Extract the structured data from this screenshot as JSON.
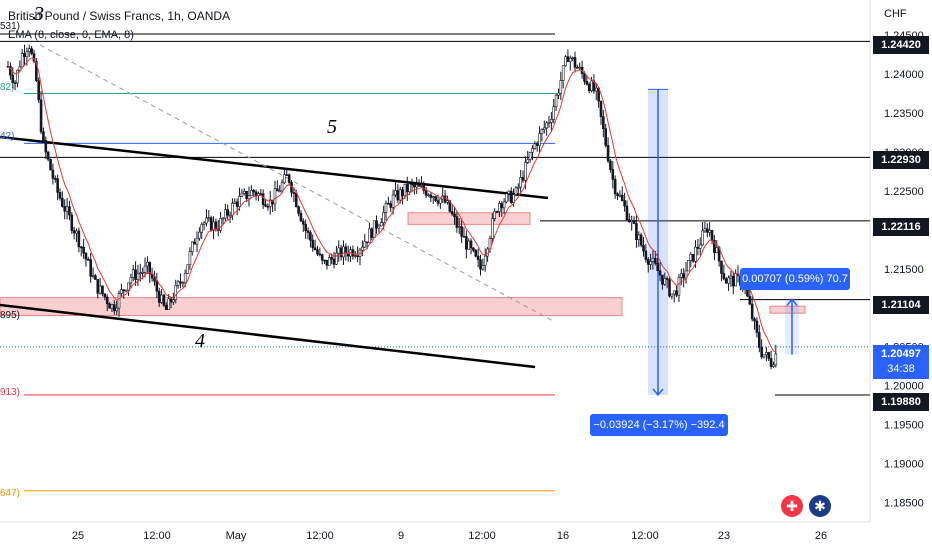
{
  "header": {
    "title": "British Pound / Swiss Francs, 1h, OANDA",
    "indicator": "EMA (8, close, 0, EMA, 8)",
    "currency": "CHF"
  },
  "waves": [
    "3",
    "5",
    "4"
  ],
  "left_labels": {
    "l1": "531)",
    "l2": "82)",
    "l3": "42)",
    "l4": "895)",
    "l5": "913)",
    "l6": "647)"
  },
  "price_tags": {
    "p1": "1.24420",
    "p2": "1.22930",
    "p3": "1.22116",
    "p4": "1.21104",
    "p5": "1.19880"
  },
  "last_price": {
    "price": "1.20497",
    "countdown": "34:38"
  },
  "measurements": {
    "down": "−0.03924 (−3.17%) −392.4",
    "up": "0.00707 (0.59%) 70.7"
  },
  "chart_data": {
    "type": "candlestick",
    "title": "British Pound / Swiss Franc, 1h, OANDA",
    "y_axis": {
      "min": 1.183,
      "max": 1.249,
      "unit": "CHF",
      "ticks": [
        "1.24500",
        "1.24000",
        "1.23500",
        "1.23000",
        "1.22500",
        "1.22000",
        "1.21500",
        "1.21000",
        "1.20500",
        "1.20000",
        "1.19500",
        "1.19000",
        "1.18500"
      ]
    },
    "x_axis": {
      "ticks": [
        "25",
        "12:00",
        "May",
        "12:00",
        "9",
        "12:00",
        "16",
        "12:00",
        "23",
        "26"
      ]
    },
    "price_path": [
      [
        1.241,
        0
      ],
      [
        1.239,
        4
      ],
      [
        1.2425,
        8
      ],
      [
        1.244,
        12
      ],
      [
        1.2395,
        16
      ],
      [
        1.231,
        20
      ],
      [
        1.225,
        28
      ],
      [
        1.219,
        40
      ],
      [
        1.213,
        50
      ],
      [
        1.21,
        60
      ],
      [
        1.214,
        70
      ],
      [
        1.215,
        80
      ],
      [
        1.2095,
        90
      ],
      [
        1.214,
        100
      ],
      [
        1.221,
        110
      ],
      [
        1.2205,
        120
      ],
      [
        1.2235,
        130
      ],
      [
        1.225,
        140
      ],
      [
        1.2235,
        150
      ],
      [
        1.227,
        160
      ],
      [
        1.22,
        170
      ],
      [
        1.2155,
        180
      ],
      [
        1.217,
        190
      ],
      [
        1.2175,
        200
      ],
      [
        1.2205,
        210
      ],
      [
        1.224,
        220
      ],
      [
        1.2255,
        230
      ],
      [
        1.225,
        240
      ],
      [
        1.2235,
        250
      ],
      [
        1.219,
        260
      ],
      [
        1.215,
        270
      ],
      [
        1.2235,
        280
      ],
      [
        1.2245,
        290
      ],
      [
        1.2305,
        300
      ],
      [
        1.2345,
        310
      ],
      [
        1.2425,
        320
      ],
      [
        1.24,
        328
      ],
      [
        1.2375,
        336
      ],
      [
        1.226,
        346
      ],
      [
        1.221,
        356
      ],
      [
        1.217,
        364
      ],
      [
        1.2145,
        372
      ],
      [
        1.2115,
        380
      ],
      [
        1.216,
        390
      ],
      [
        1.2205,
        400
      ],
      [
        1.2135,
        410
      ],
      [
        1.2135,
        420
      ],
      [
        1.2045,
        430
      ],
      [
        1.203,
        436
      ],
      [
        1.2045,
        440
      ]
    ],
    "horizontal_levels": [
      1.2442,
      1.2293,
      1.22116,
      1.21104,
      1.1988
    ],
    "zones": [
      {
        "from": 1.209,
        "to": 1.2113
      },
      {
        "from": 1.2207,
        "to": 1.2222
      },
      {
        "from": 1.2093,
        "to": 1.2102
      }
    ],
    "fib_levels": [
      {
        "value": 1.2375,
        "color": "#26a69a"
      },
      {
        "value": 1.2311,
        "color": "#2962ff"
      },
      {
        "value": 1.1988,
        "color": "#f23645"
      },
      {
        "value": 1.1865,
        "color": "#ff9800"
      }
    ],
    "last_price": 1.20497,
    "measurements": [
      {
        "label": "−0.03924 (−3.17%) −392.4",
        "from": 1.23804,
        "to": 1.1988
      },
      {
        "label": "0.00707 (0.59%) 70.7",
        "from": 1.204,
        "to": 1.21107
      }
    ]
  }
}
